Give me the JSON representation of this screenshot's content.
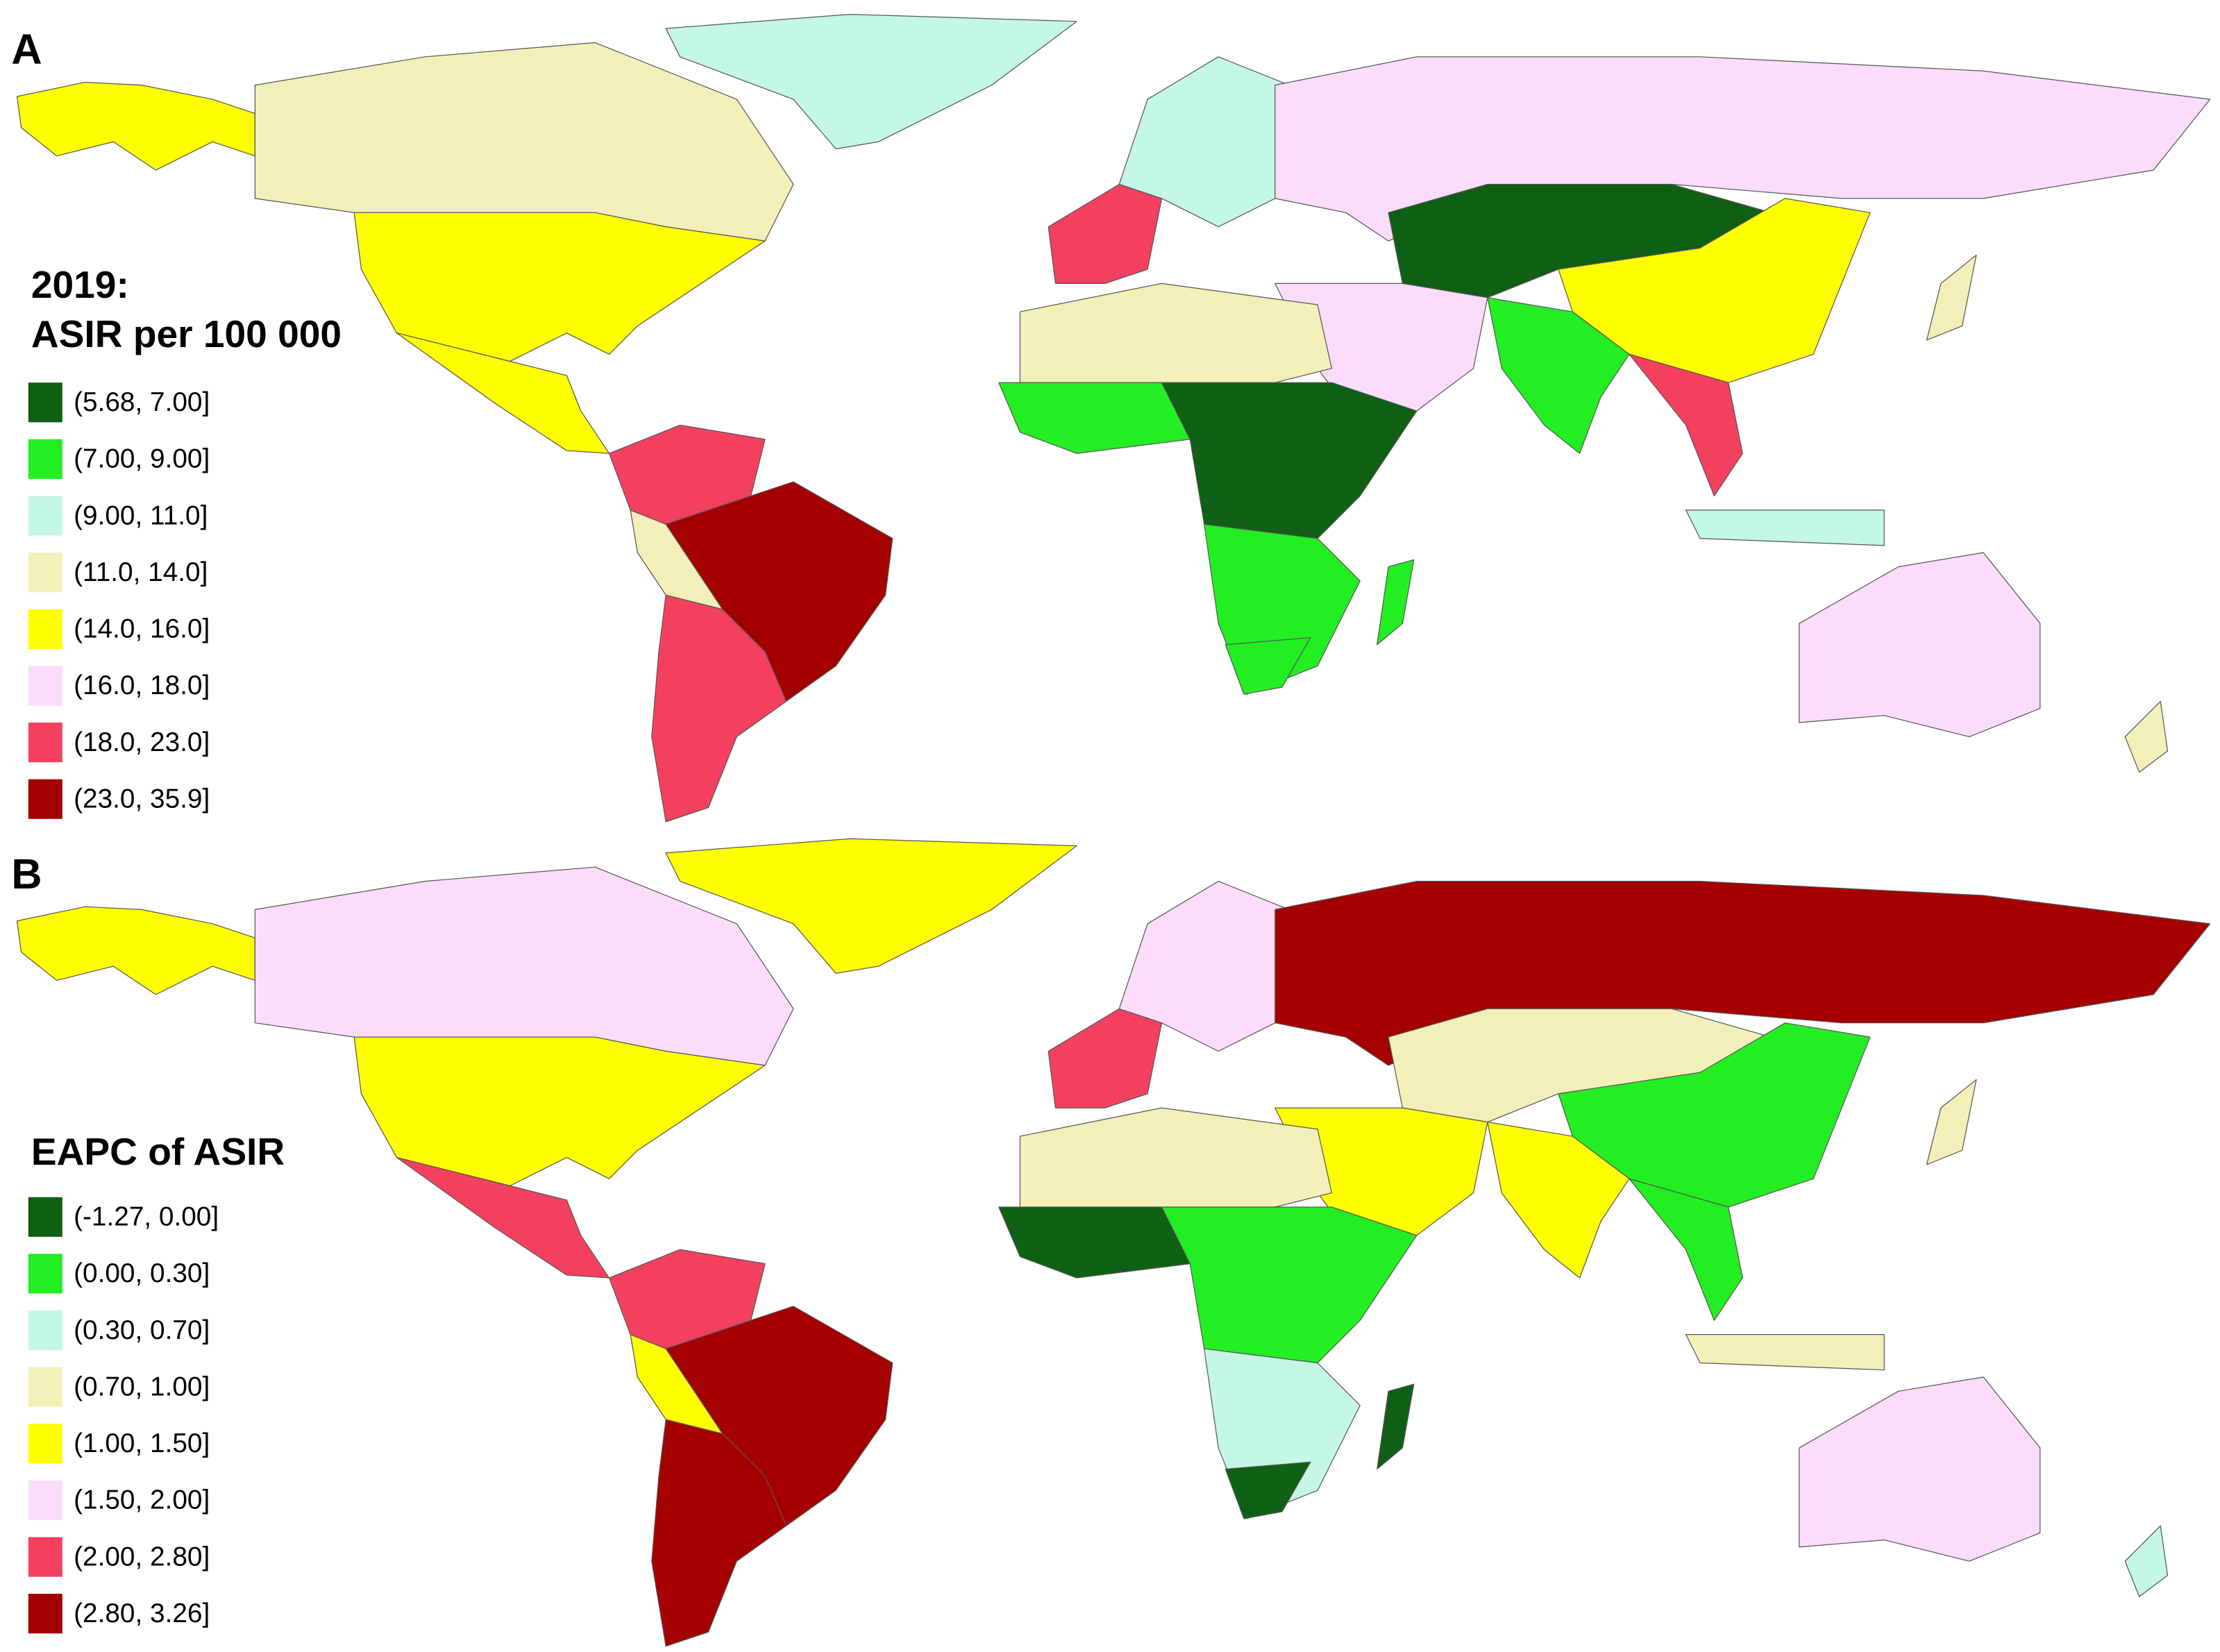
{
  "panels": [
    {
      "label": "A",
      "legend": {
        "title_lines": [
          "2019:",
          "ASIR per 100 000"
        ],
        "items": [
          {
            "label": "(5.68, 7.00]",
            "color": "#0f5f14"
          },
          {
            "label": "(7.00, 9.00]",
            "color": "#22ee22"
          },
          {
            "label": "(9.00, 11.0]",
            "color": "#c4f7e4"
          },
          {
            "label": "(11.0, 14.0]",
            "color": "#f3efb8"
          },
          {
            "label": "(14.0, 16.0]",
            "color": "#ffff00"
          },
          {
            "label": "(16.0, 18.0]",
            "color": "#fbdcfb"
          },
          {
            "label": "(18.0, 23.0]",
            "color": "#f4405f"
          },
          {
            "label": "(23.0, 35.9]",
            "color": "#a50000"
          }
        ]
      }
    },
    {
      "label": "B",
      "legend": {
        "title_lines": [
          "EAPC of ASIR"
        ],
        "items": [
          {
            "label": "(-1.27, 0.00]",
            "color": "#0f5f14"
          },
          {
            "label": "(0.00, 0.30]",
            "color": "#22ee22"
          },
          {
            "label": "(0.30, 0.70]",
            "color": "#c4f7e4"
          },
          {
            "label": "(0.70, 1.00]",
            "color": "#f3efb8"
          },
          {
            "label": "(1.00, 1.50]",
            "color": "#ffff00"
          },
          {
            "label": "(1.50, 2.00]",
            "color": "#fbdcfb"
          },
          {
            "label": "(2.00, 2.80]",
            "color": "#f4405f"
          },
          {
            "label": "(2.80, 3.26]",
            "color": "#a50000"
          }
        ]
      }
    }
  ]
}
